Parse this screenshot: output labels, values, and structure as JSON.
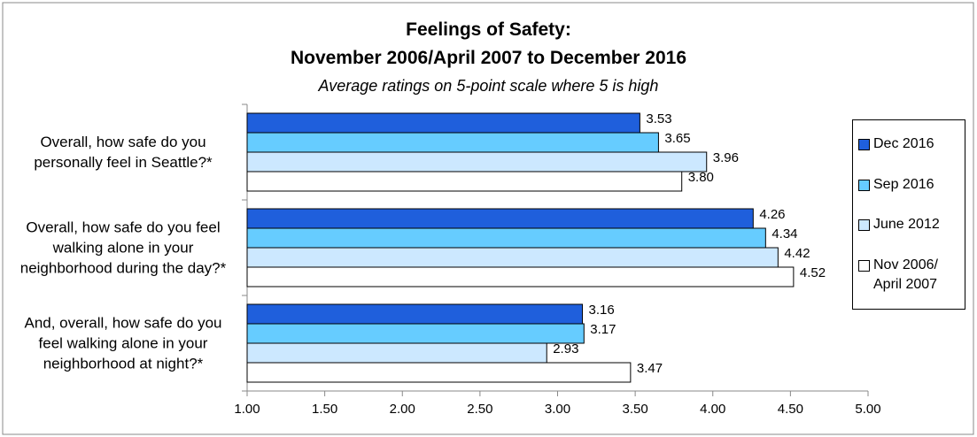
{
  "chart_data": {
    "type": "barh",
    "title": [
      "Feelings of Safety:",
      "November 2006/April 2007 to December 2016"
    ],
    "subtitle": "Average ratings on 5-point scale where 5 is high",
    "categories": [
      "Overall, how safe do you personally feel in Seattle?*",
      "Overall, how safe do you feel walking alone in your neighborhood during the day?*",
      "And, overall, how safe do you feel walking alone in your neighborhood at night?*"
    ],
    "series": [
      {
        "name": "Dec 2016",
        "color": "#1f5fdc",
        "values": [
          3.53,
          4.26,
          3.16
        ],
        "value_labels": [
          "3.53",
          "4.26",
          "3.16"
        ]
      },
      {
        "name": "Sep 2016",
        "color": "#66ccff",
        "values": [
          3.65,
          4.34,
          3.17
        ],
        "value_labels": [
          "3.65",
          "4.34",
          "3.17"
        ]
      },
      {
        "name": "June 2012",
        "color": "#cce8ff",
        "values": [
          3.96,
          4.42,
          2.93
        ],
        "value_labels": [
          "3.96",
          "4.42",
          "2.93"
        ]
      },
      {
        "name": "Nov 2006/ April 2007",
        "color": "#ffffff",
        "values": [
          3.8,
          4.52,
          3.47
        ],
        "value_labels": [
          "3.80",
          "4.52",
          "3.47"
        ]
      }
    ],
    "xlim": [
      1,
      5
    ],
    "xticks": [
      {
        "value": 1,
        "label": "1.00"
      },
      {
        "value": 1.5,
        "label": "1.50"
      },
      {
        "value": 2,
        "label": "2.00"
      },
      {
        "value": 2.5,
        "label": "2.50"
      },
      {
        "value": 3,
        "label": "3.00"
      },
      {
        "value": 3.5,
        "label": "3.50"
      },
      {
        "value": 4,
        "label": "4.00"
      },
      {
        "value": 4.5,
        "label": "4.50"
      },
      {
        "value": 5,
        "label": "5.00"
      }
    ],
    "legend": "right",
    "grid": false
  }
}
